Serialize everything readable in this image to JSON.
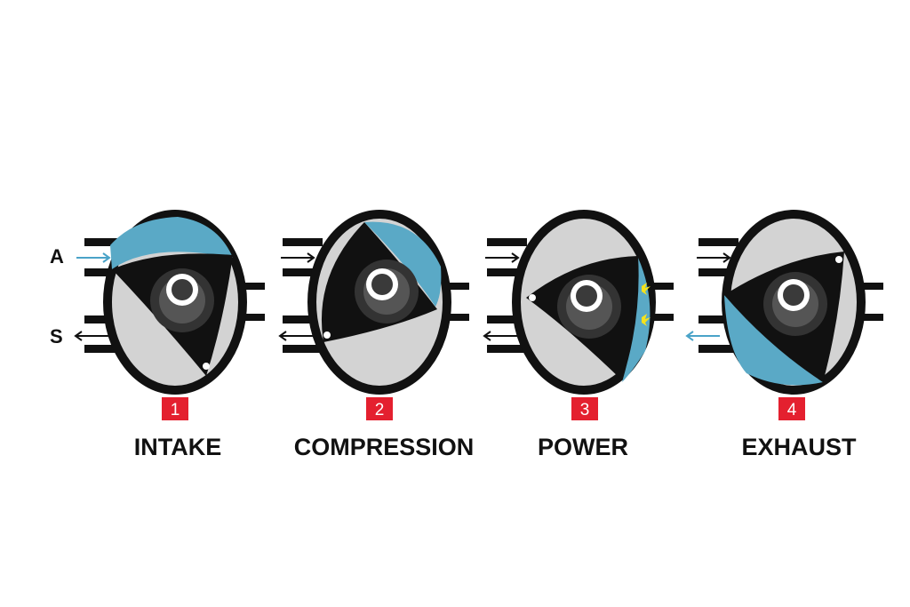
{
  "inlet_label": "A",
  "outlet_label": "S",
  "stages": [
    {
      "number": "1",
      "name": "INTAKE"
    },
    {
      "number": "2",
      "name": "COMPRESSION"
    },
    {
      "number": "3",
      "name": "POWER"
    },
    {
      "number": "4",
      "name": "EXHAUST"
    }
  ],
  "colors": {
    "housing_outline": "#111111",
    "chamber_fill": "#d3d3d3",
    "fresh_charge": "#5aa9c6",
    "rotor": "#111111",
    "gear_outer": "#3a3a3a",
    "gear_inner": "#555555",
    "badge": "#e4202f",
    "spark": "#f4e21c",
    "arrow_blue": "#4aa3c8"
  },
  "icons": [
    "arrow-right-icon",
    "arrow-left-icon",
    "spark-plug-icon",
    "spark-icon"
  ]
}
